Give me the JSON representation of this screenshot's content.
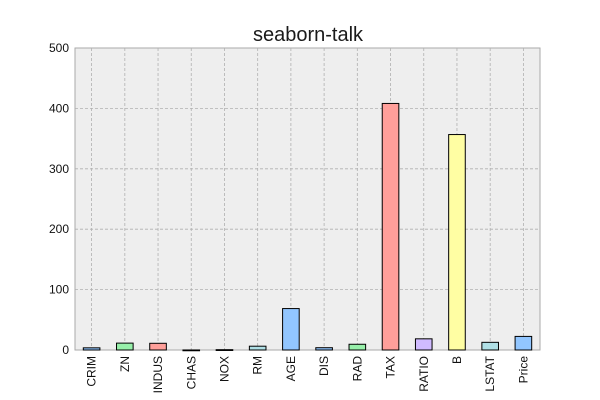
{
  "chart_data": {
    "type": "bar",
    "title": "seaborn-talk",
    "xlabel": "",
    "ylabel": "",
    "ylim": [
      0,
      500
    ],
    "yticks": [
      0,
      100,
      200,
      300,
      400,
      500
    ],
    "grid": true,
    "categories": [
      "CRIM",
      "ZN",
      "INDUS",
      "CHAS",
      "NOX",
      "RM",
      "AGE",
      "DIS",
      "RAD",
      "TAX",
      "RATIO",
      "B",
      "LSTAT",
      "Price"
    ],
    "values": [
      3.6,
      11.4,
      11.1,
      0.07,
      0.55,
      6.3,
      68.6,
      3.8,
      9.5,
      408.2,
      18.5,
      356.7,
      12.7,
      22.5
    ],
    "colors": [
      "#92c6ff",
      "#97f0aa",
      "#ff9f9a",
      "#d0bbff",
      "#fffea3",
      "#b0e0e6",
      "#92c6ff",
      "#92c6ff",
      "#97f0aa",
      "#ff9f9a",
      "#d0bbff",
      "#fffea3",
      "#b0e0e6",
      "#92c6ff"
    ]
  }
}
